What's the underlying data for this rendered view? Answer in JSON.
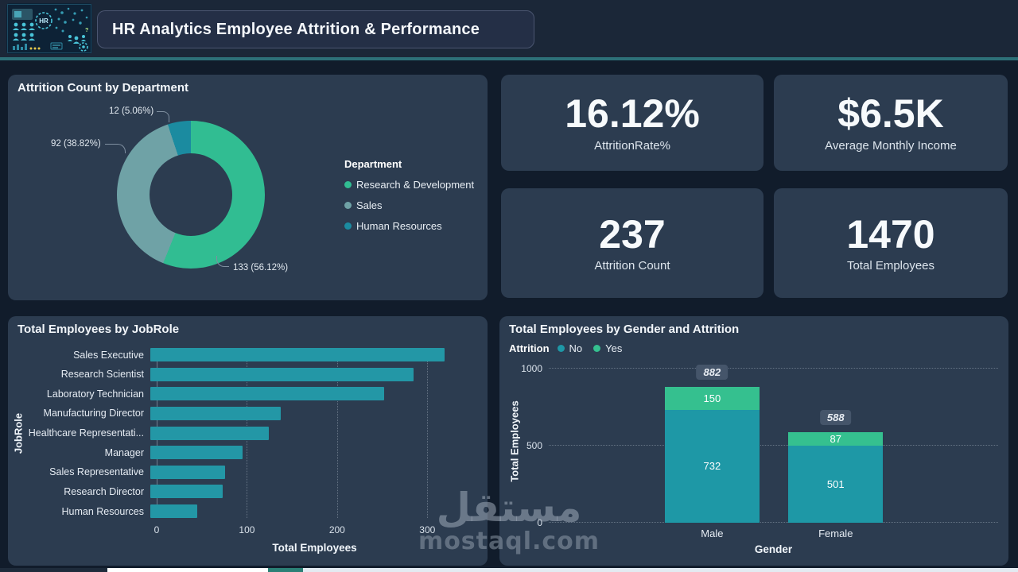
{
  "header": {
    "title": "HR Analytics Employee Attrition & Performance",
    "logo_text": "HR"
  },
  "kpis": [
    {
      "value": "16.12%",
      "label": "AttritionRate%"
    },
    {
      "value": "$6.5K",
      "label": "Average Monthly Income"
    },
    {
      "value": "237",
      "label": "Attrition Count"
    },
    {
      "value": "1470",
      "label": "Total Employees"
    }
  ],
  "chart_data": [
    {
      "type": "pie",
      "subtype": "donut",
      "title": "Attrition Count by Department",
      "legend_title": "Department",
      "legend_position": "right",
      "total": 237,
      "segments": [
        {
          "label": "Research & Development",
          "value": 133,
          "percent": 56.12,
          "data_label": "133 (56.12%)",
          "color": "#31bd92"
        },
        {
          "label": "Sales",
          "value": 92,
          "percent": 38.82,
          "data_label": "92 (38.82%)",
          "color": "#6fa2a6"
        },
        {
          "label": "Human Resources",
          "value": 12,
          "percent": 5.06,
          "data_label": "12 (5.06%)",
          "color": "#1b8ba0"
        }
      ]
    },
    {
      "type": "bar",
      "orientation": "horizontal",
      "title": "Total Employees by JobRole",
      "categories": [
        "Sales Executive",
        "Research Scientist",
        "Laboratory Technician",
        "Manufacturing Director",
        "Healthcare Representati...",
        "Manager",
        "Sales Representative",
        "Research Director",
        "Human Resources"
      ],
      "values": [
        326,
        292,
        259,
        145,
        131,
        102,
        83,
        80,
        52
      ],
      "xlabel": "Total Employees",
      "ylabel": "JobRole",
      "xticks": [
        0,
        100,
        200,
        300
      ],
      "xmax": 350,
      "bar_color": "#2397a6",
      "grid": "dotted-vertical"
    },
    {
      "type": "bar",
      "subtype": "stacked-column",
      "title": "Total Employees by Gender and Attrition",
      "legend_title": "Attrition",
      "categories": [
        "Male",
        "Female"
      ],
      "series": [
        {
          "name": "No",
          "color": "#1e98a6",
          "values": [
            732,
            501
          ]
        },
        {
          "name": "Yes",
          "color": "#35c08f",
          "values": [
            150,
            87
          ]
        }
      ],
      "totals": [
        882,
        588
      ],
      "xlabel": "Gender",
      "ylabel": "Total Employees",
      "yticks": [
        0,
        500,
        1000
      ],
      "ymax": 1000,
      "grid": "dotted-horizontal",
      "bar_layout": {
        "lefts_pct": [
          25.8,
          53.3
        ],
        "width_pct": 21.1
      }
    }
  ],
  "watermark": {
    "line1": "مستقل",
    "line2": "mostaql.com"
  },
  "colors": {
    "page_bg": "#111c2b",
    "header_bg": "#1b2738",
    "accent_teal": "#2d7078",
    "panel_bg": "#2c3c50",
    "bar_teal": "#2397a6",
    "green_yes": "#35c08f",
    "chip_bg": "#45556a"
  }
}
